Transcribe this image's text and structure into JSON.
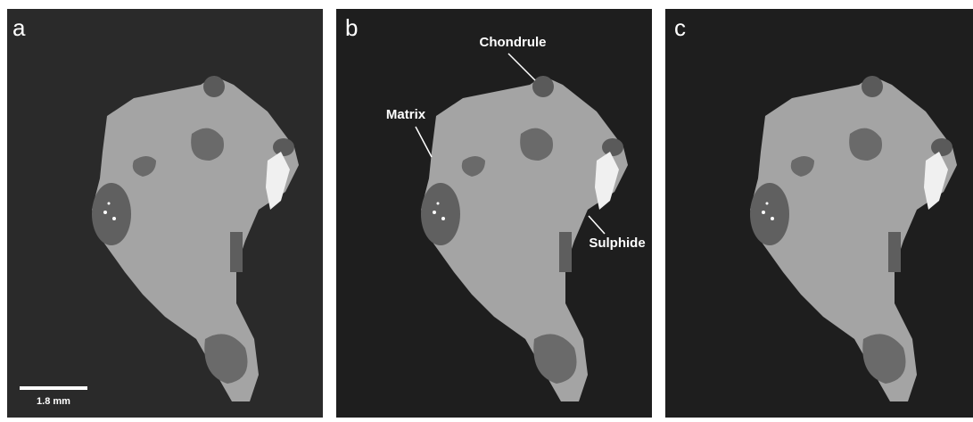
{
  "panels": [
    {
      "label": "a",
      "scale_bar": "1.8 mm"
    },
    {
      "label": "b",
      "annotations": [
        "Chondrule",
        "Matrix",
        "Sulphide"
      ]
    },
    {
      "label": "c"
    }
  ]
}
